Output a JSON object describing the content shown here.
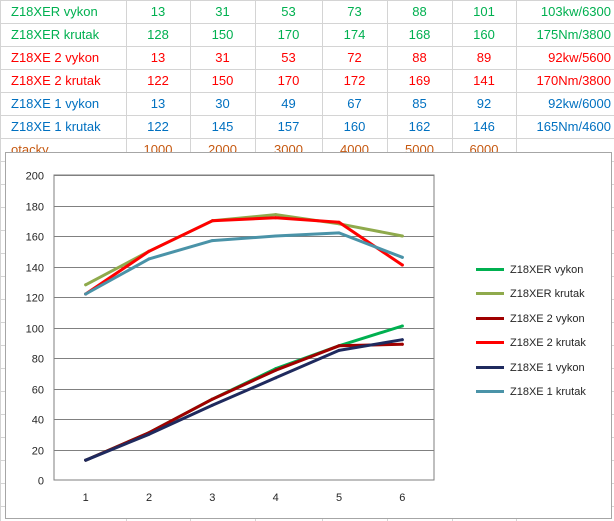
{
  "table": {
    "rows": [
      {
        "label": "Z18XER vykon",
        "values": [
          "13",
          "31",
          "53",
          "73",
          "88",
          "101",
          "103kw/6300"
        ],
        "color": "#00b050"
      },
      {
        "label": "Z18XER krutak",
        "values": [
          "128",
          "150",
          "170",
          "174",
          "168",
          "160",
          "175Nm/3800"
        ],
        "color": "#00b050"
      },
      {
        "label": "Z18XE 2 vykon",
        "values": [
          "13",
          "31",
          "53",
          "72",
          "88",
          "89",
          "92kw/5600"
        ],
        "color": "#ff0000"
      },
      {
        "label": "Z18XE 2 krutak",
        "values": [
          "122",
          "150",
          "170",
          "172",
          "169",
          "141",
          "170Nm/3800"
        ],
        "color": "#ff0000"
      },
      {
        "label": "Z18XE 1 vykon",
        "values": [
          "13",
          "30",
          "49",
          "67",
          "85",
          "92",
          "92kw/6000"
        ],
        "color": "#0070c0"
      },
      {
        "label": "Z18XE 1 krutak",
        "values": [
          "122",
          "145",
          "157",
          "160",
          "162",
          "146",
          "165Nm/4600"
        ],
        "color": "#0070c0"
      },
      {
        "label": "otacky",
        "values": [
          "1000",
          "2000",
          "3000",
          "4000",
          "5000",
          "6000",
          ""
        ],
        "color": "#c65911"
      }
    ]
  },
  "chart_data": {
    "type": "line",
    "x": [
      1,
      2,
      3,
      4,
      5,
      6
    ],
    "xticks": [
      "1",
      "2",
      "3",
      "4",
      "5",
      "6"
    ],
    "ylim": [
      0,
      200
    ],
    "yticks": [
      "0",
      "20",
      "40",
      "60",
      "80",
      "100",
      "120",
      "140",
      "160",
      "180",
      "200"
    ],
    "grid": true,
    "legend_position": "right",
    "series": [
      {
        "name": "Z18XER vykon",
        "values": [
          13,
          31,
          53,
          73,
          88,
          101
        ],
        "color": "#00b050"
      },
      {
        "name": "Z18XER krutak",
        "values": [
          128,
          150,
          170,
          174,
          168,
          160
        ],
        "color": "#8faa4c"
      },
      {
        "name": "Z18XE 2 vykon",
        "values": [
          13,
          31,
          53,
          72,
          88,
          89
        ],
        "color": "#a00000"
      },
      {
        "name": "Z18XE 2 krutak",
        "values": [
          122,
          150,
          170,
          172,
          169,
          141
        ],
        "color": "#ff0000"
      },
      {
        "name": "Z18XE 1 vykon",
        "values": [
          13,
          30,
          49,
          67,
          85,
          92
        ],
        "color": "#1f2a5e"
      },
      {
        "name": "Z18XE 1 krutak",
        "values": [
          122,
          145,
          157,
          160,
          162,
          146
        ],
        "color": "#4a93a8"
      }
    ]
  }
}
